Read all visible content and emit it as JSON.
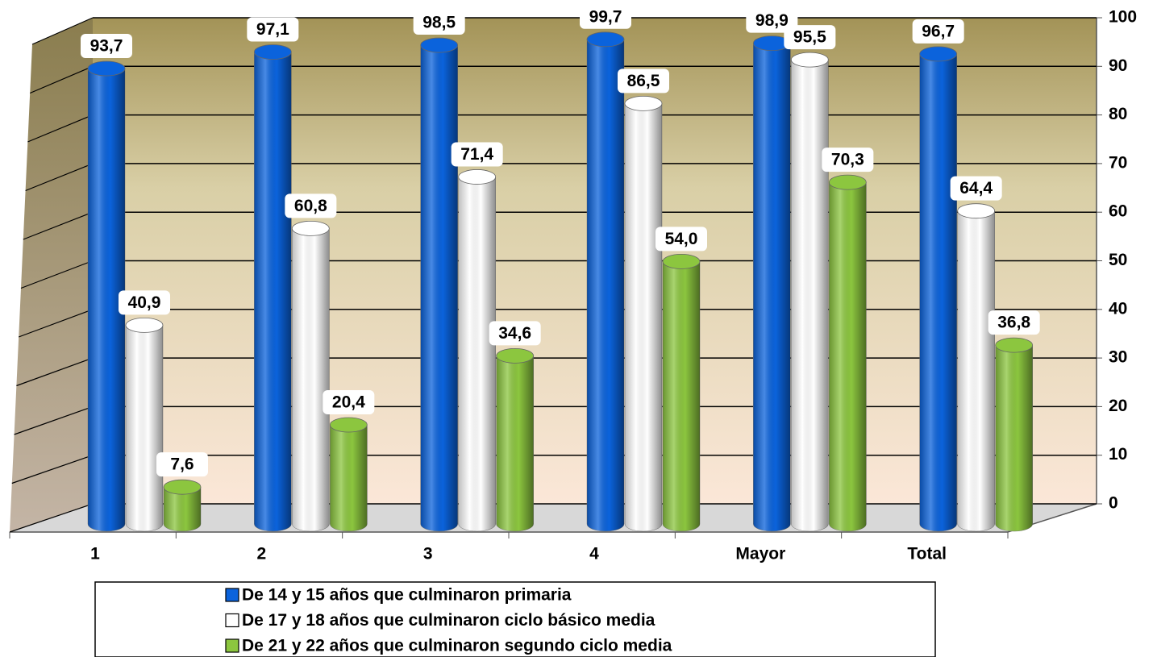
{
  "chart_data": {
    "type": "bar",
    "categories": [
      "1",
      "2",
      "3",
      "4",
      "Mayor",
      "Total"
    ],
    "series": [
      {
        "name": "De 14 y 15 años que culminaron primaria",
        "color": "#0b63dc",
        "values": [
          93.7,
          97.1,
          98.5,
          99.7,
          98.9,
          96.7
        ],
        "value_labels": [
          "93,7",
          "97,1",
          "98,5",
          "99,7",
          "98,9",
          "96,7"
        ]
      },
      {
        "name": "De 17 y 18 años que culminaron ciclo básico media",
        "color": "#ffffff",
        "values": [
          40.9,
          60.8,
          71.4,
          86.5,
          95.5,
          64.4
        ],
        "value_labels": [
          "40,9",
          "60,8",
          "71,4",
          "86,5",
          "95,5",
          "64,4"
        ]
      },
      {
        "name": "De 21 y 22 años que culminaron segundo ciclo media",
        "color": "#8cc63f",
        "values": [
          7.6,
          20.4,
          34.6,
          54.0,
          70.3,
          36.8
        ],
        "value_labels": [
          "7,6",
          "20,4",
          "34,6",
          "54,0",
          "70,3",
          "36,8"
        ]
      }
    ],
    "ylim": [
      0,
      100
    ],
    "yticks": [
      0,
      10,
      20,
      30,
      40,
      50,
      60,
      70,
      80,
      90,
      100
    ],
    "grid": true
  }
}
